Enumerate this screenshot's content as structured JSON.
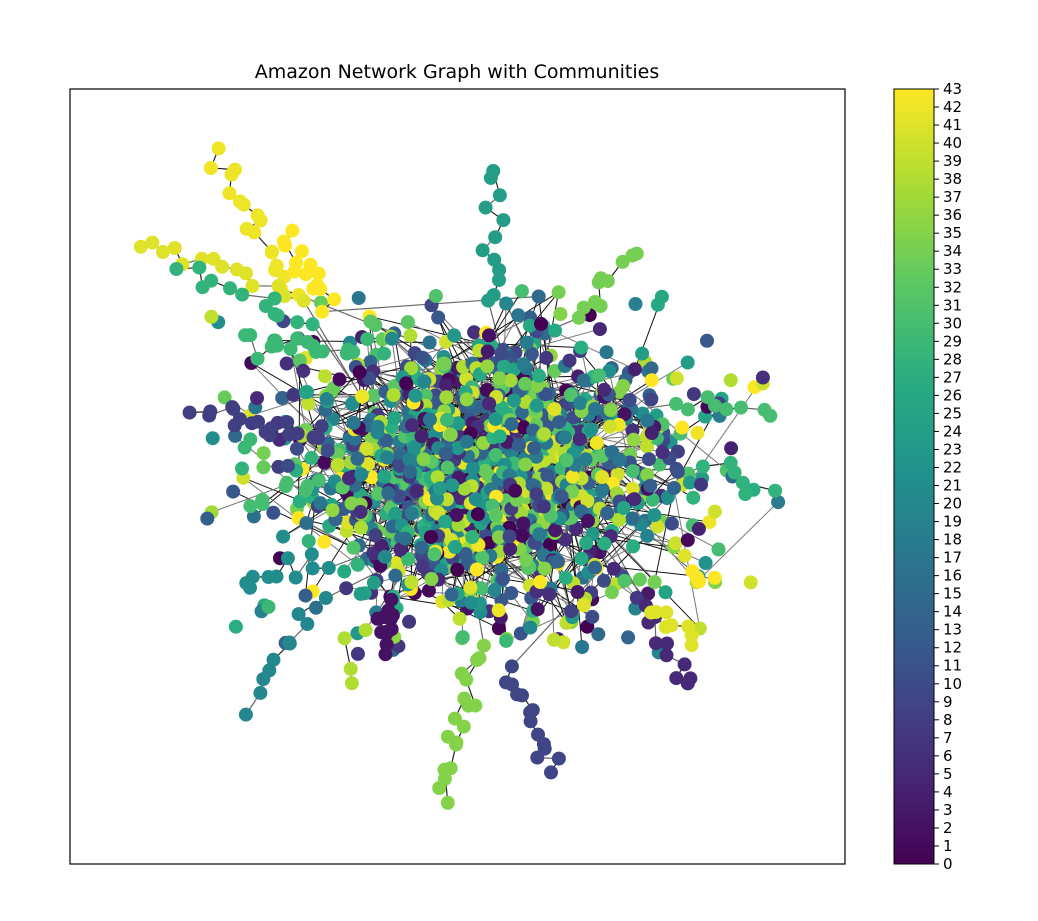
{
  "chart_data": {
    "type": "network",
    "title": "Amazon Network Graph with Communities",
    "colorbar": {
      "label": "",
      "min": 0,
      "max": 43,
      "colormap": "viridis",
      "ticks": [
        "0",
        "1",
        "2",
        "3",
        "4",
        "5",
        "6",
        "7",
        "8",
        "9",
        "10",
        "11",
        "12",
        "13",
        "14",
        "15",
        "16",
        "17",
        "18",
        "19",
        "20",
        "21",
        "22",
        "23",
        "24",
        "25",
        "26",
        "27",
        "28",
        "29",
        "30",
        "31",
        "32",
        "33",
        "34",
        "35",
        "36",
        "37",
        "38",
        "39",
        "40",
        "41",
        "42",
        "43"
      ]
    },
    "node_color_by": "community",
    "edge_color": "#555555",
    "communities": 44,
    "axes": {
      "frame": true,
      "xticks": false,
      "yticks": false
    }
  }
}
